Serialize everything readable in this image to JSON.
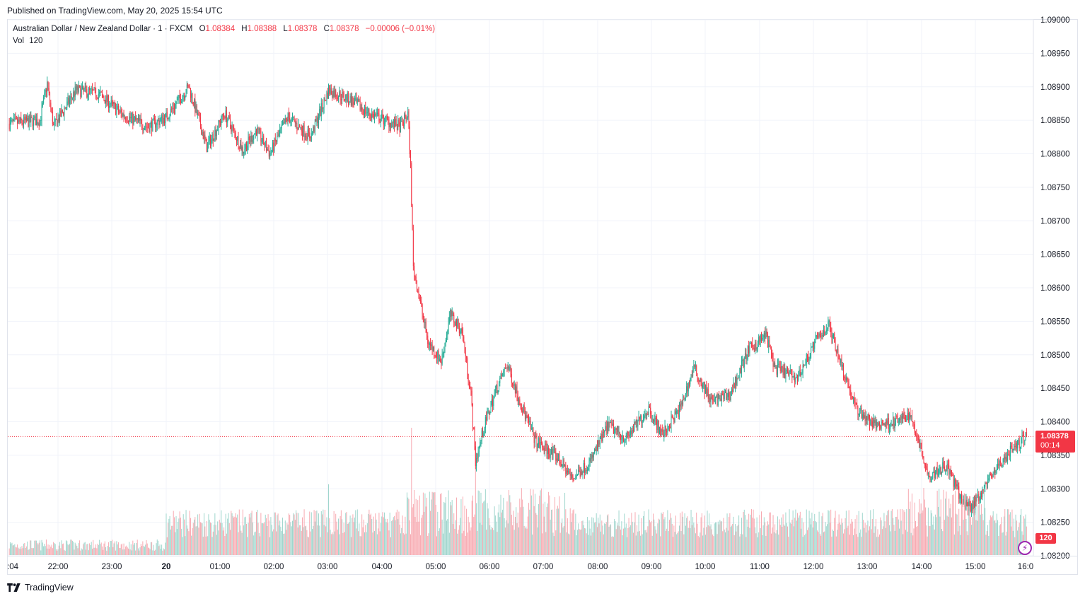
{
  "published": "Published on TradingView.com, May 20, 2025 15:54 UTC",
  "legend": {
    "symbol": "Australian Dollar / New Zealand Dollar · 1 · FXCM",
    "o_label": "O",
    "o": "1.08384",
    "h_label": "H",
    "h": "1.08388",
    "l_label": "L",
    "l": "1.08378",
    "c_label": "C",
    "c": "1.08378",
    "change": "−0.00006 (−0.01%)",
    "vol_label": "Vol",
    "vol": "120"
  },
  "badges": {
    "price": "1.08378",
    "countdown": "00:14",
    "volume": "120"
  },
  "footer": {
    "brand": "TradingView"
  },
  "colors": {
    "up": "#22ab94",
    "down": "#f23645",
    "vol_up": "#9fd6cd",
    "vol_down": "#f7a9b0"
  },
  "chart_data": {
    "type": "candlestick",
    "symbol": "AUDNZD",
    "interval": "1",
    "ylim": [
      1.082,
      1.09
    ],
    "y_ticks": [
      "1.09000",
      "1.08950",
      "1.08900",
      "1.08850",
      "1.08800",
      "1.08750",
      "1.08700",
      "1.08650",
      "1.08600",
      "1.08550",
      "1.08500",
      "1.08450",
      "1.08400",
      "1.08350",
      "1.08300",
      "1.08250",
      "1.08200"
    ],
    "x_ticks": [
      ":04",
      "22:00",
      "23:00",
      "20",
      "01:00",
      "02:00",
      "03:00",
      "04:00",
      "05:00",
      "06:00",
      "07:00",
      "08:00",
      "09:00",
      "10:00",
      "11:00",
      "12:00",
      "13:00",
      "14:00",
      "15:00",
      "16:0"
    ],
    "last_price": 1.08378,
    "price_path": [
      {
        "t": "21:04",
        "p": 1.08845
      },
      {
        "t": "21:40",
        "p": 1.0885
      },
      {
        "t": "21:48",
        "p": 1.08905
      },
      {
        "t": "21:55",
        "p": 1.0884
      },
      {
        "t": "22:20",
        "p": 1.08895
      },
      {
        "t": "22:45",
        "p": 1.0889
      },
      {
        "t": "23:10",
        "p": 1.0886
      },
      {
        "t": "23:40",
        "p": 1.0884
      },
      {
        "t": "00:00",
        "p": 1.08855
      },
      {
        "t": "00:25",
        "p": 1.089
      },
      {
        "t": "00:45",
        "p": 1.0881
      },
      {
        "t": "01:05",
        "p": 1.0886
      },
      {
        "t": "01:25",
        "p": 1.08805
      },
      {
        "t": "01:40",
        "p": 1.08835
      },
      {
        "t": "01:55",
        "p": 1.088
      },
      {
        "t": "02:15",
        "p": 1.08855
      },
      {
        "t": "02:40",
        "p": 1.08825
      },
      {
        "t": "03:00",
        "p": 1.08895
      },
      {
        "t": "03:25",
        "p": 1.0888
      },
      {
        "t": "03:45",
        "p": 1.0886
      },
      {
        "t": "04:20",
        "p": 1.0884
      },
      {
        "t": "04:28",
        "p": 1.0886
      },
      {
        "t": "04:31",
        "p": 1.0878
      },
      {
        "t": "04:34",
        "p": 1.0863
      },
      {
        "t": "04:40",
        "p": 1.0859
      },
      {
        "t": "04:50",
        "p": 1.0852
      },
      {
        "t": "05:05",
        "p": 1.0849
      },
      {
        "t": "05:15",
        "p": 1.0856
      },
      {
        "t": "05:28",
        "p": 1.08535
      },
      {
        "t": "05:38",
        "p": 1.0844
      },
      {
        "t": "05:43",
        "p": 1.0834
      },
      {
        "t": "05:52",
        "p": 1.0839
      },
      {
        "t": "06:05",
        "p": 1.08445
      },
      {
        "t": "06:18",
        "p": 1.08485
      },
      {
        "t": "06:35",
        "p": 1.0842
      },
      {
        "t": "06:50",
        "p": 1.0837
      },
      {
        "t": "07:15",
        "p": 1.08345
      },
      {
        "t": "07:30",
        "p": 1.08315
      },
      {
        "t": "07:50",
        "p": 1.0834
      },
      {
        "t": "08:10",
        "p": 1.08395
      },
      {
        "t": "08:30",
        "p": 1.08375
      },
      {
        "t": "08:55",
        "p": 1.0842
      },
      {
        "t": "09:10",
        "p": 1.0838
      },
      {
        "t": "09:30",
        "p": 1.0842
      },
      {
        "t": "09:45",
        "p": 1.0848
      },
      {
        "t": "10:05",
        "p": 1.0843
      },
      {
        "t": "10:25",
        "p": 1.0844
      },
      {
        "t": "10:45",
        "p": 1.08505
      },
      {
        "t": "11:05",
        "p": 1.0853
      },
      {
        "t": "11:15",
        "p": 1.0848
      },
      {
        "t": "11:40",
        "p": 1.08465
      },
      {
        "t": "12:00",
        "p": 1.0852
      },
      {
        "t": "12:15",
        "p": 1.08545
      },
      {
        "t": "12:30",
        "p": 1.0848
      },
      {
        "t": "12:45",
        "p": 1.0842
      },
      {
        "t": "13:05",
        "p": 1.08395
      },
      {
        "t": "13:30",
        "p": 1.084
      },
      {
        "t": "13:45",
        "p": 1.0841
      },
      {
        "t": "13:55",
        "p": 1.0837
      },
      {
        "t": "14:05",
        "p": 1.0832
      },
      {
        "t": "14:25",
        "p": 1.08335
      },
      {
        "t": "14:45",
        "p": 1.08275
      },
      {
        "t": "14:55",
        "p": 1.08275
      },
      {
        "t": "15:15",
        "p": 1.0832
      },
      {
        "t": "15:35",
        "p": 1.08355
      },
      {
        "t": "15:54",
        "p": 1.08378
      }
    ]
  }
}
